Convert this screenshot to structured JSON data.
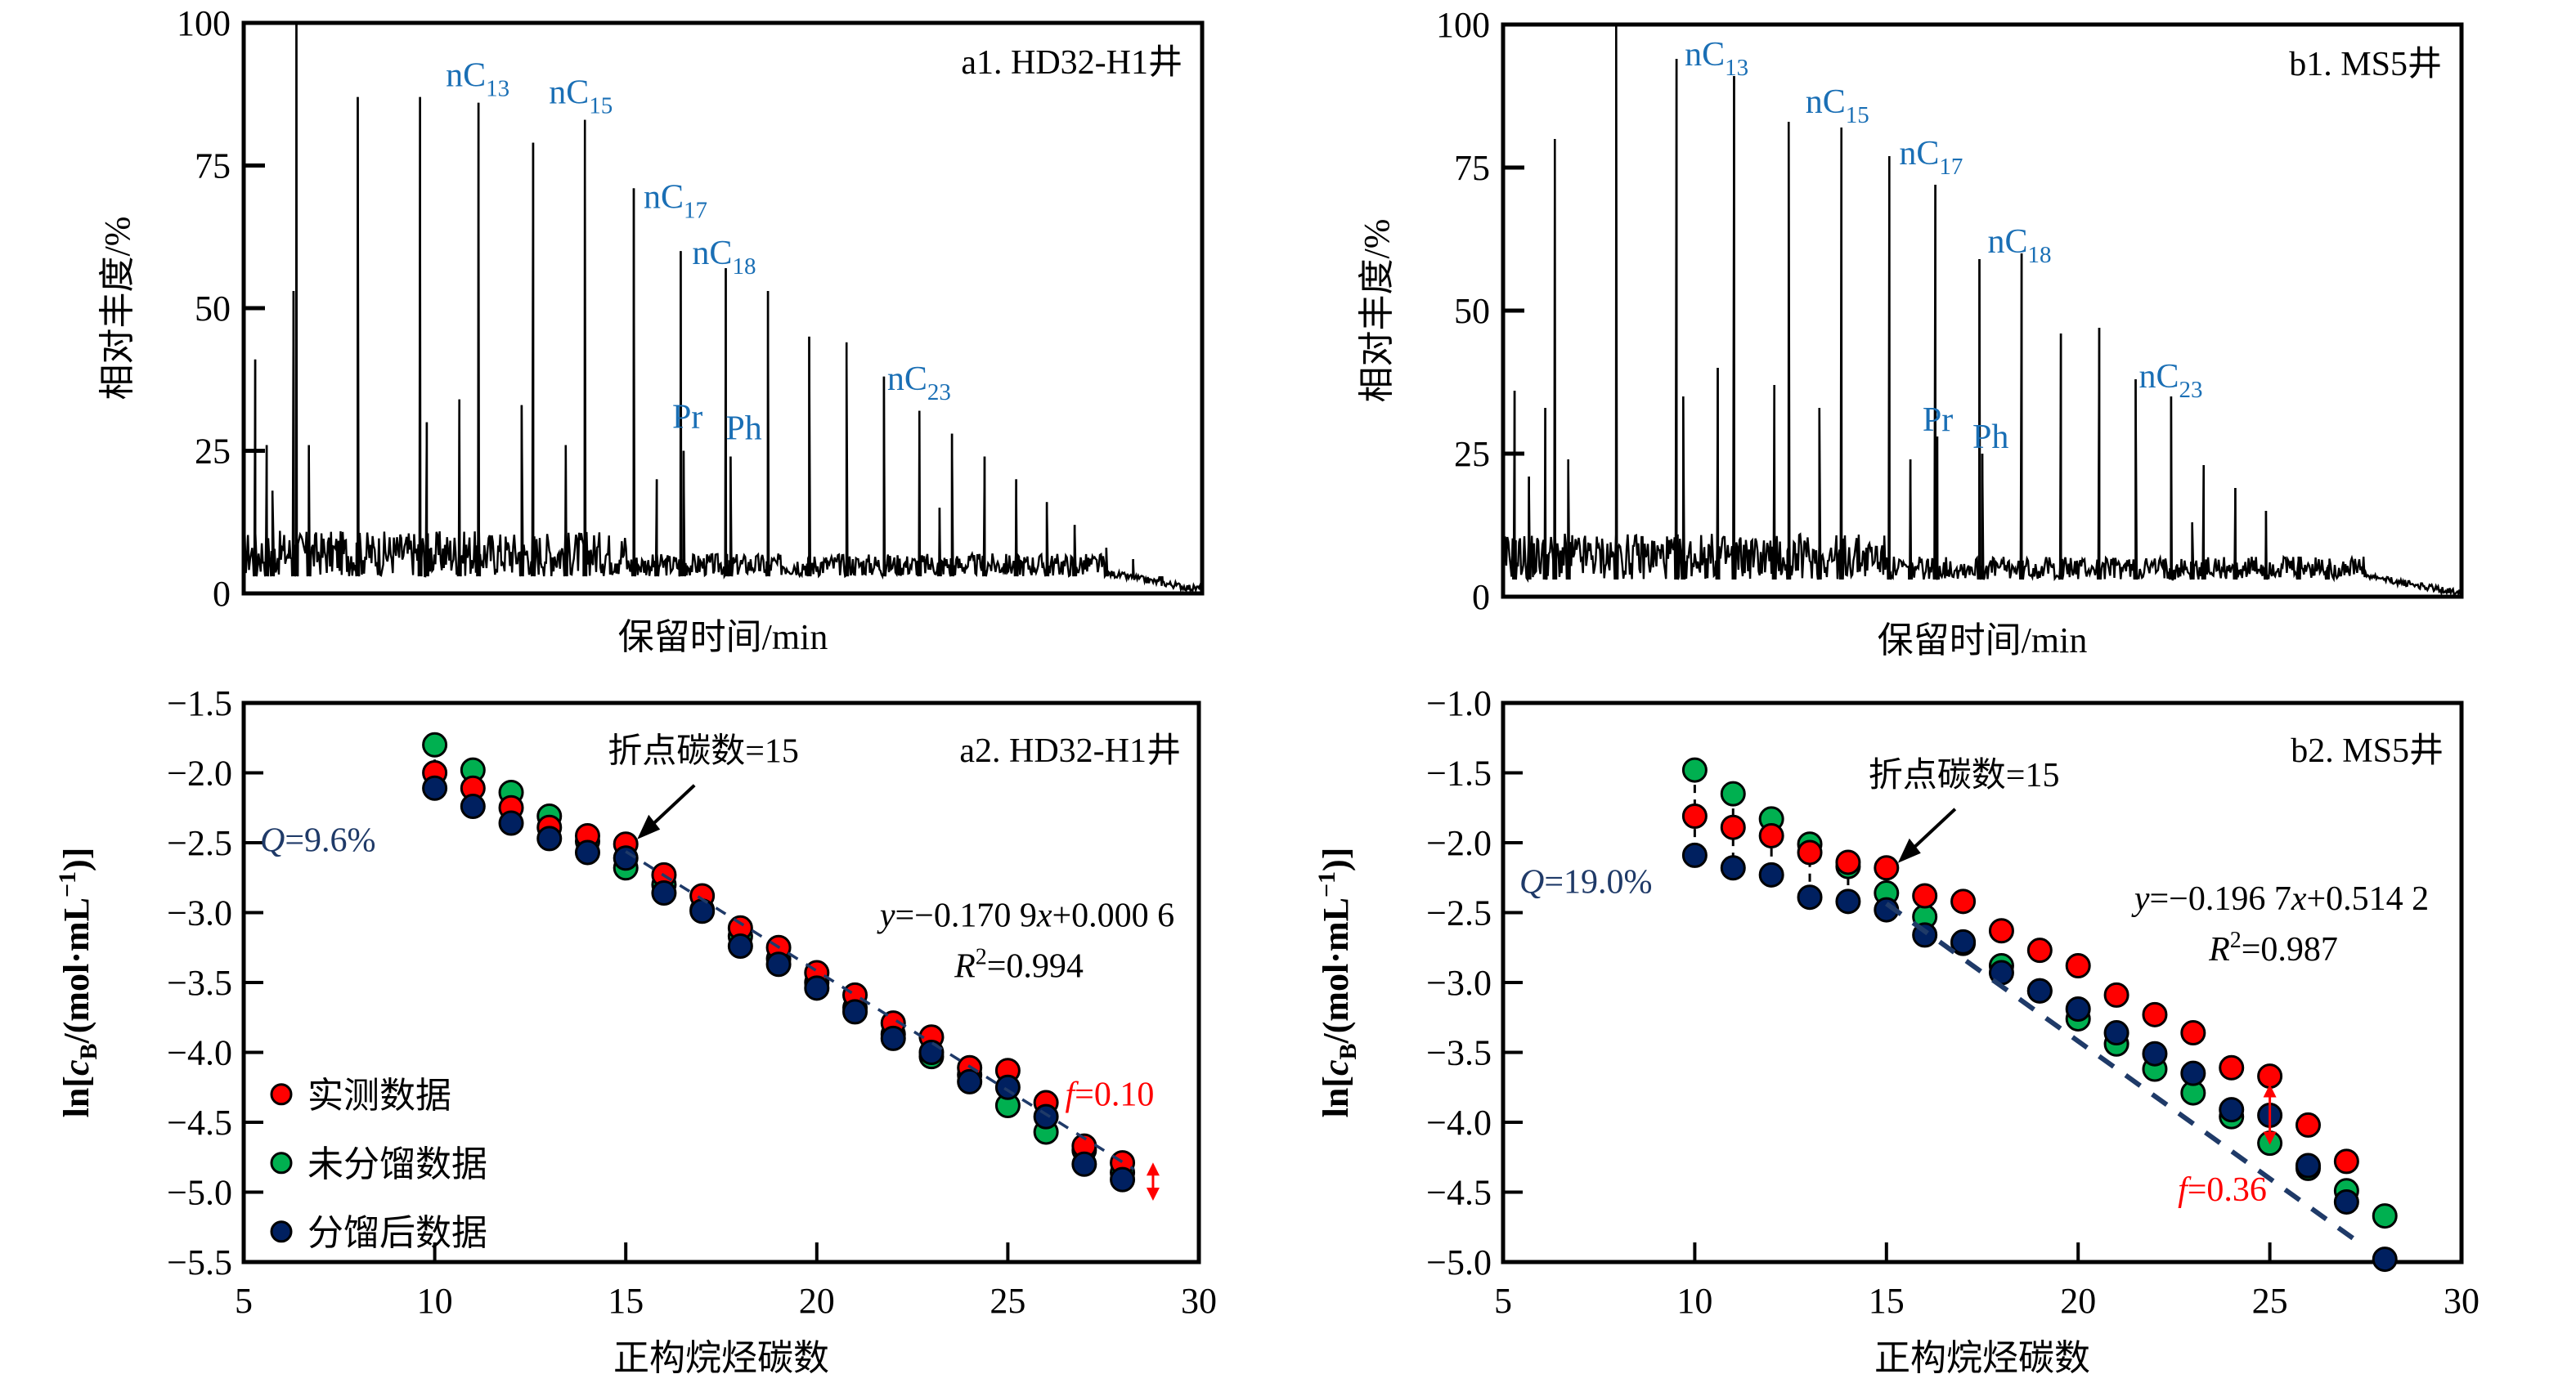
{
  "figure": {
    "panels": [
      "a1",
      "b1",
      "a2",
      "b2"
    ]
  },
  "chart_data": [
    {
      "id": "a1",
      "type": "line",
      "title": "a1. HD32-H1井",
      "xlabel": "保留时间/min",
      "ylabel": "相对丰度/%",
      "ylim": [
        0,
        100
      ],
      "xlim": [
        0,
        1
      ],
      "yticks": [
        "0",
        "25",
        "50",
        "75",
        "100"
      ],
      "grid": false,
      "note": "Gas chromatogram; x is relative retention position (0-1), y is relative abundance (%)",
      "peaks": [
        {
          "x": 0.012,
          "y": 41
        },
        {
          "x": 0.024,
          "y": 26
        },
        {
          "x": 0.03,
          "y": 18
        },
        {
          "x": 0.052,
          "y": 53
        },
        {
          "x": 0.055,
          "y": 100
        },
        {
          "x": 0.068,
          "y": 26
        },
        {
          "x": 0.119,
          "y": 87
        },
        {
          "x": 0.184,
          "y": 87
        },
        {
          "x": 0.191,
          "y": 30
        },
        {
          "x": 0.225,
          "y": 34
        },
        {
          "x": 0.245,
          "y": 86
        },
        {
          "x": 0.29,
          "y": 33
        },
        {
          "x": 0.302,
          "y": 79
        },
        {
          "x": 0.336,
          "y": 26
        },
        {
          "x": 0.356,
          "y": 83
        },
        {
          "x": 0.407,
          "y": 71
        },
        {
          "x": 0.431,
          "y": 20
        },
        {
          "x": 0.456,
          "y": 60
        },
        {
          "x": 0.459,
          "y": 25
        },
        {
          "x": 0.503,
          "y": 57
        },
        {
          "x": 0.508,
          "y": 24
        },
        {
          "x": 0.547,
          "y": 53
        },
        {
          "x": 0.59,
          "y": 45
        },
        {
          "x": 0.629,
          "y": 44
        },
        {
          "x": 0.668,
          "y": 38
        },
        {
          "x": 0.705,
          "y": 32
        },
        {
          "x": 0.726,
          "y": 15
        },
        {
          "x": 0.739,
          "y": 28
        },
        {
          "x": 0.773,
          "y": 24
        },
        {
          "x": 0.806,
          "y": 20
        },
        {
          "x": 0.838,
          "y": 16
        },
        {
          "x": 0.867,
          "y": 12
        },
        {
          "x": 0.9,
          "y": 8
        },
        {
          "x": 0.928,
          "y": 6
        },
        {
          "x": 0.957,
          "y": 3
        }
      ],
      "labels": [
        {
          "text": "nC",
          "sub": "13",
          "peak_x": 0.245
        },
        {
          "text": "nC",
          "sub": "15",
          "peak_x": 0.356
        },
        {
          "text": "nC",
          "sub": "17",
          "peak_x": 0.407
        },
        {
          "text": "nC",
          "sub": "18",
          "peak_x": 0.456
        },
        {
          "text": "Pr",
          "sub": "",
          "peak_x": 0.459
        },
        {
          "text": "Ph",
          "sub": "",
          "peak_x": 0.508
        },
        {
          "text": "nC",
          "sub": "23",
          "peak_x": 0.668
        }
      ]
    },
    {
      "id": "b1",
      "type": "line",
      "title": "b1. MS5井",
      "xlabel": "保留时间/min",
      "ylabel": "相对丰度/%",
      "ylim": [
        0,
        100
      ],
      "xlim": [
        0,
        1
      ],
      "yticks": [
        "0",
        "25",
        "50",
        "75",
        "100"
      ],
      "grid": false,
      "note": "Gas chromatogram; x is relative retention position (0-1), y is relative abundance (%)",
      "peaks": [
        {
          "x": 0.012,
          "y": 36
        },
        {
          "x": 0.027,
          "y": 21
        },
        {
          "x": 0.044,
          "y": 33
        },
        {
          "x": 0.054,
          "y": 80
        },
        {
          "x": 0.068,
          "y": 24
        },
        {
          "x": 0.118,
          "y": 100
        },
        {
          "x": 0.181,
          "y": 94
        },
        {
          "x": 0.188,
          "y": 35
        },
        {
          "x": 0.224,
          "y": 40
        },
        {
          "x": 0.241,
          "y": 91
        },
        {
          "x": 0.283,
          "y": 37
        },
        {
          "x": 0.298,
          "y": 83
        },
        {
          "x": 0.33,
          "y": 33
        },
        {
          "x": 0.353,
          "y": 82
        },
        {
          "x": 0.403,
          "y": 77
        },
        {
          "x": 0.425,
          "y": 24
        },
        {
          "x": 0.451,
          "y": 72
        },
        {
          "x": 0.453,
          "y": 28
        },
        {
          "x": 0.497,
          "y": 59
        },
        {
          "x": 0.5,
          "y": 25
        },
        {
          "x": 0.541,
          "y": 60
        },
        {
          "x": 0.582,
          "y": 46
        },
        {
          "x": 0.622,
          "y": 47
        },
        {
          "x": 0.66,
          "y": 38
        },
        {
          "x": 0.697,
          "y": 35
        },
        {
          "x": 0.719,
          "y": 13
        },
        {
          "x": 0.731,
          "y": 23
        },
        {
          "x": 0.764,
          "y": 19
        },
        {
          "x": 0.796,
          "y": 15
        },
        {
          "x": 0.83,
          "y": 7
        },
        {
          "x": 0.86,
          "y": 4
        }
      ],
      "labels": [
        {
          "text": "nC",
          "sub": "13",
          "peak_x": 0.181
        },
        {
          "text": "nC",
          "sub": "15",
          "peak_x": 0.353
        },
        {
          "text": "nC",
          "sub": "17",
          "peak_x": 0.403
        },
        {
          "text": "nC",
          "sub": "18",
          "peak_x": 0.497
        },
        {
          "text": "Pr",
          "sub": "",
          "peak_x": 0.453
        },
        {
          "text": "Ph",
          "sub": "",
          "peak_x": 0.5
        },
        {
          "text": "nC",
          "sub": "23",
          "peak_x": 0.66
        }
      ]
    },
    {
      "id": "a2",
      "type": "scatter",
      "title": "a2. HD32-H1井",
      "xlabel": "正构烷烃碳数",
      "ylabel": "ln[cB/(mol·mL⁻¹)]",
      "xlim": [
        5,
        30
      ],
      "ylim": [
        -5.5,
        -1.5
      ],
      "xticks": [
        5,
        10,
        15,
        20,
        25,
        30
      ],
      "yticks": [
        -1.5,
        -2.0,
        -2.5,
        -3.0,
        -3.5,
        -4.0,
        -4.5,
        -5.0,
        -5.5
      ],
      "grid": false,
      "legend_position": "bottom-left",
      "x": [
        10,
        11,
        12,
        13,
        14,
        15,
        16,
        17,
        18,
        19,
        20,
        21,
        22,
        23,
        24,
        25,
        26,
        27,
        28
      ],
      "series": [
        {
          "name": "实测数据",
          "color": "#ff0000",
          "values": [
            -2.0,
            -2.11,
            -2.25,
            -2.39,
            -2.45,
            -2.51,
            -2.73,
            -2.88,
            -3.11,
            -3.25,
            -3.43,
            -3.59,
            -3.79,
            -3.89,
            -4.11,
            -4.13,
            -4.36,
            -4.67,
            -4.79
          ]
        },
        {
          "name": "未分馏数据",
          "color": "#00b050",
          "values": [
            -1.8,
            -1.98,
            -2.14,
            -2.31,
            -2.49,
            -2.68,
            -2.8,
            -2.98,
            -3.17,
            -3.33,
            -3.5,
            -3.68,
            -3.87,
            -4.03,
            -4.16,
            -4.38,
            -4.57,
            -4.7,
            -4.86
          ]
        },
        {
          "name": "分馏后数据",
          "color": "#002060",
          "values": [
            -2.11,
            -2.24,
            -2.36,
            -2.47,
            -2.57,
            -2.61,
            -2.86,
            -2.99,
            -3.24,
            -3.37,
            -3.54,
            -3.71,
            -3.9,
            -4.0,
            -4.21,
            -4.25,
            -4.46,
            -4.8,
            -4.91
          ]
        }
      ],
      "fit_line": {
        "slope": -0.1709,
        "intercept": 0.0006,
        "x_from": 15,
        "x_to": 28.3,
        "color": "#1f3a68"
      },
      "annotations": {
        "equation": "y=−0.170 9x+0.000 6",
        "r2": "R²=0.994",
        "r2_prefix": "R",
        "r2_sup": "2",
        "r2_value": "=0.994",
        "eq_var_y": "y",
        "eq_mid": "=−0.170 9",
        "eq_var_x": "x",
        "eq_tail": "+0.000 6",
        "breakpoint": "折点碳数=15",
        "breakpoint_carbon": 15,
        "q_prefix": "Q",
        "q_value": "=9.6%",
        "f_prefix": "f",
        "f_value": "=0.10",
        "f_arrow_x": 28.8,
        "f_arrow_y": [
          -4.8,
          -5.05
        ],
        "connector_x": [
          10,
          11
        ]
      }
    },
    {
      "id": "b2",
      "type": "scatter",
      "title": "b2. MS5井",
      "xlabel": "正构烷烃碳数",
      "ylabel": "ln[cB/(mol·mL⁻¹)]",
      "xlim": [
        5,
        30
      ],
      "ylim": [
        -5.0,
        -1.0
      ],
      "xticks": [
        5,
        10,
        15,
        20,
        25,
        30
      ],
      "yticks": [
        -1.0,
        -1.5,
        -2.0,
        -2.5,
        -3.0,
        -3.5,
        -4.0,
        -4.5,
        -5.0
      ],
      "grid": false,
      "x": [
        10,
        11,
        12,
        13,
        14,
        15,
        16,
        17,
        18,
        19,
        20,
        21,
        22,
        23,
        24,
        25,
        26,
        27,
        28
      ],
      "series": [
        {
          "name": "实测数据",
          "color": "#ff0000",
          "values": [
            -1.81,
            -1.89,
            -1.95,
            -2.07,
            -2.14,
            -2.18,
            -2.38,
            -2.42,
            -2.63,
            -2.77,
            -2.88,
            -3.09,
            -3.23,
            -3.36,
            -3.61,
            -3.67,
            -4.02,
            -4.28,
            null
          ]
        },
        {
          "name": "未分馏数据",
          "color": "#00b050",
          "values": [
            -1.48,
            -1.65,
            -1.83,
            -2.01,
            -2.17,
            -2.36,
            -2.53,
            -2.72,
            -2.88,
            -3.06,
            -3.26,
            -3.44,
            -3.62,
            -3.79,
            -3.96,
            -4.15,
            -4.33,
            -4.49,
            -4.67
          ]
        },
        {
          "name": "分馏后数据",
          "color": "#002060",
          "values": [
            -2.09,
            -2.18,
            -2.23,
            -2.39,
            -2.42,
            -2.48,
            -2.66,
            -2.71,
            -2.93,
            -3.06,
            -3.19,
            -3.36,
            -3.51,
            -3.65,
            -3.91,
            -3.95,
            -4.31,
            -4.57,
            -4.98
          ]
        }
      ],
      "fit_line": {
        "slope": -0.1967,
        "intercept": 0.5142,
        "x_from": 15,
        "x_to": 27.4,
        "color": "#1f3a68"
      },
      "annotations": {
        "equation": "y=−0.196 7x+0.514 2",
        "r2": "R²=0.987",
        "r2_prefix": "R",
        "r2_sup": "2",
        "r2_value": "=0.987",
        "eq_var_y": "y",
        "eq_mid": "=−0.196 7",
        "eq_var_x": "x",
        "eq_tail": "+0.514 2",
        "breakpoint": "折点碳数=15",
        "breakpoint_carbon": 15,
        "q_prefix": "Q",
        "q_value": "=19.0%",
        "f_prefix": "f",
        "f_value": "=0.36",
        "f_arrow_x": 25,
        "f_arrow_y": [
          -3.74,
          -4.15
        ],
        "connector_x": [
          10,
          11,
          12,
          13,
          14
        ]
      }
    }
  ]
}
